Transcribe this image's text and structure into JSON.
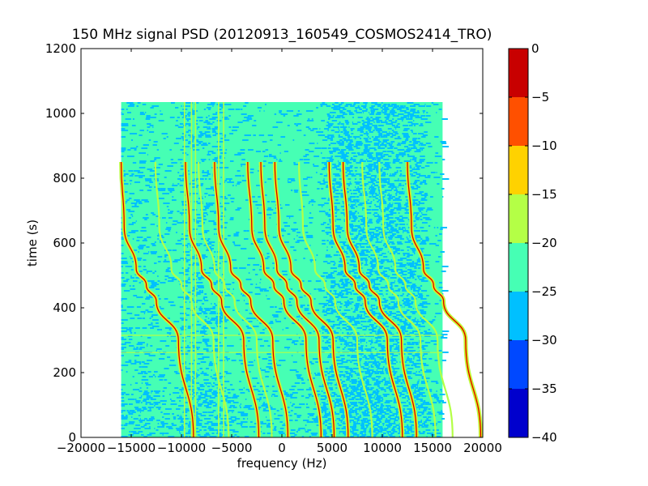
{
  "chart_data": {
    "type": "heatmap",
    "title": "150 MHz signal PSD (20120913_160549_COSMOS2414_TRO)",
    "xlabel": "frequency (Hz)",
    "ylabel": "time (s)",
    "xlim": [
      -20000,
      20000
    ],
    "ylim": [
      0,
      1200
    ],
    "xticks": [
      -20000,
      -15000,
      -10000,
      -5000,
      0,
      5000,
      10000,
      15000,
      20000
    ],
    "xtick_labels": [
      "−20000",
      "−15000",
      "−10000",
      "−5000",
      "0",
      "5000",
      "10000",
      "15000",
      "20000"
    ],
    "yticks": [
      0,
      200,
      400,
      600,
      800,
      1000,
      1200
    ],
    "ytick_labels": [
      "0",
      "200",
      "400",
      "600",
      "800",
      "1000",
      "1200"
    ],
    "data_extent": {
      "x": [
        -16000,
        16000
      ],
      "y": [
        0,
        1035
      ]
    },
    "background_level_range": [
      -30,
      -20
    ],
    "colorbar": {
      "range": [
        -40,
        0
      ],
      "levels": [
        -40,
        -35,
        -30,
        -25,
        -20,
        -15,
        -10,
        -5,
        0
      ],
      "labels": [
        "−40",
        "−35",
        "−30",
        "−25",
        "−20",
        "−15",
        "−10",
        "−5",
        "0"
      ],
      "colors": [
        "#0000cd",
        "#0048ff",
        "#00c0ff",
        "#46ffb4",
        "#b4ff46",
        "#ffd200",
        "#ff5000",
        "#c80000"
      ]
    },
    "tracks": [
      {
        "t": [
          0,
          300,
          420,
          470,
          520,
          650,
          850
        ],
        "f": [
          -8800,
          -10300,
          -12500,
          -13500,
          -14500,
          -15700,
          -16000
        ],
        "level": "peak"
      },
      {
        "t": [
          0,
          300,
          420,
          470,
          520,
          650,
          850
        ],
        "f": [
          -2300,
          -3800,
          -6000,
          -7000,
          -8000,
          -9200,
          -9600
        ],
        "level": "peak"
      },
      {
        "t": [
          0,
          300,
          420,
          470,
          520,
          650,
          850
        ],
        "f": [
          600,
          -900,
          -3100,
          -4100,
          -5100,
          -6300,
          -6700
        ],
        "level": "peak"
      },
      {
        "t": [
          0,
          300,
          420,
          470,
          520,
          650,
          850
        ],
        "f": [
          3900,
          2400,
          200,
          -800,
          -1800,
          -3000,
          -3400
        ],
        "level": "peak"
      },
      {
        "t": [
          0,
          300,
          420,
          470,
          520,
          650,
          850
        ],
        "f": [
          5200,
          3700,
          1500,
          500,
          -500,
          -1700,
          -2100
        ],
        "level": "peak"
      },
      {
        "t": [
          0,
          300,
          420,
          470,
          520,
          650,
          850
        ],
        "f": [
          6600,
          5100,
          2900,
          1900,
          900,
          -300,
          -700
        ],
        "level": "peak"
      },
      {
        "t": [
          0,
          300,
          420,
          470,
          520,
          650,
          850
        ],
        "f": [
          12000,
          10500,
          8300,
          7300,
          6300,
          5100,
          4700
        ],
        "level": "peak"
      },
      {
        "t": [
          0,
          300,
          420,
          470,
          520,
          650,
          850
        ],
        "f": [
          13400,
          11900,
          9700,
          8700,
          7700,
          6500,
          6100
        ],
        "level": "peak"
      },
      {
        "t": [
          0,
          300,
          420,
          470,
          520,
          650,
          850
        ],
        "f": [
          19800,
          18300,
          16100,
          15100,
          14100,
          12900,
          12500
        ],
        "level": "peak"
      },
      {
        "t": [
          0,
          300,
          420,
          470,
          520,
          650,
          850
        ],
        "f": [
          -5300,
          -6800,
          -9000,
          -10000,
          -11000,
          -12200,
          -12600
        ],
        "level": "mid"
      },
      {
        "t": [
          0,
          300,
          420,
          470,
          520,
          650,
          850
        ],
        "f": [
          -1000,
          -2500,
          -4700,
          -5700,
          -6700,
          -7900,
          -8300
        ],
        "level": "mid"
      },
      {
        "t": [
          0,
          300,
          420,
          470,
          520,
          650,
          850
        ],
        "f": [
          9000,
          7500,
          5300,
          4300,
          3300,
          2100,
          1700
        ],
        "level": "mid"
      },
      {
        "t": [
          0,
          300,
          420,
          470,
          520,
          650,
          850
        ],
        "f": [
          15300,
          13800,
          11600,
          10600,
          9600,
          8400,
          8000
        ],
        "level": "mid"
      },
      {
        "t": [
          0,
          300,
          420,
          470,
          520,
          650,
          850
        ],
        "f": [
          17000,
          15500,
          13300,
          12300,
          11300,
          10100,
          9700
        ],
        "level": "mid"
      }
    ],
    "vertical_lines": [
      {
        "f": -9700,
        "t": [
          0,
          1035
        ]
      },
      {
        "f": -9000,
        "t": [
          0,
          1035
        ]
      },
      {
        "f": -8600,
        "t": [
          0,
          1035
        ]
      },
      {
        "f": -6300,
        "t": [
          0,
          1035
        ]
      },
      {
        "f": -5800,
        "t": [
          0,
          1035
        ]
      }
    ],
    "horizontal_lines": [
      {
        "t": 262,
        "f": [
          -16000,
          16000
        ]
      },
      {
        "t": 315,
        "f": [
          -16000,
          16000
        ]
      }
    ]
  }
}
